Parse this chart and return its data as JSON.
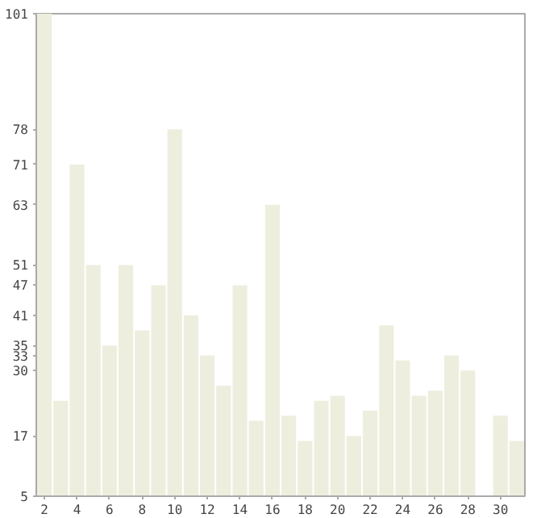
{
  "chart_data": {
    "type": "bar",
    "x": [
      2,
      3,
      4,
      5,
      6,
      7,
      8,
      9,
      10,
      11,
      12,
      13,
      14,
      15,
      16,
      17,
      18,
      19,
      20,
      21,
      22,
      23,
      24,
      25,
      26,
      27,
      28,
      29,
      30,
      31
    ],
    "values": [
      101,
      24,
      71,
      51,
      35,
      51,
      38,
      47,
      78,
      41,
      33,
      27,
      47,
      20,
      63,
      21,
      16,
      24,
      25,
      17,
      22,
      39,
      32,
      25,
      26,
      33,
      30,
      5,
      21,
      16
    ],
    "color": "#eeeedf",
    "xlim": [
      1.5,
      31.5
    ],
    "xticks": [
      2,
      4,
      6,
      8,
      10,
      12,
      14,
      16,
      18,
      20,
      22,
      24,
      26,
      28,
      30
    ],
    "ylim": [
      5,
      101
    ],
    "yticks": [
      101,
      78,
      71,
      63,
      51,
      47,
      41,
      35,
      33,
      30,
      17,
      5
    ],
    "grid": false
  }
}
